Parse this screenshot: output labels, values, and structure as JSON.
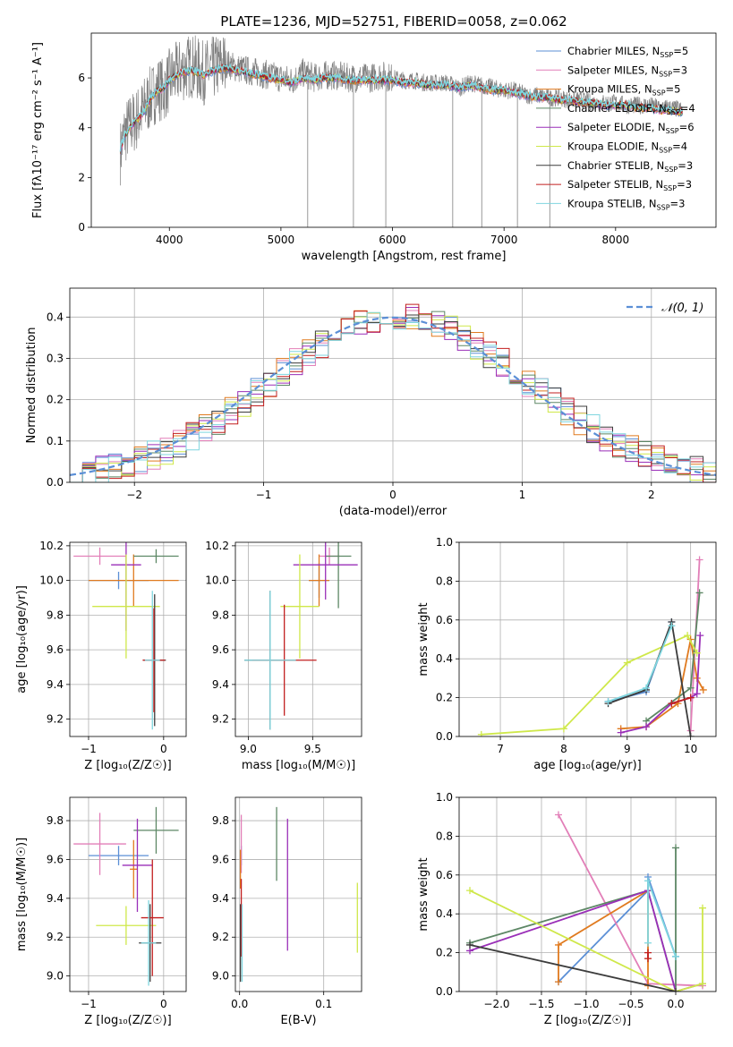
{
  "title": "PLATE=1236, MJD=52751, FIBERID=0058, z=0.062",
  "models": [
    {
      "name": "Chabrier MILES",
      "nssp": "5",
      "color": "#5b8fd6"
    },
    {
      "name": "Salpeter MILES",
      "nssp": "3",
      "color": "#e27fb8"
    },
    {
      "name": "Kroupa MILES",
      "nssp": "5",
      "color": "#e07a1f"
    },
    {
      "name": "Chabrier ELODIE",
      "nssp": "4",
      "color": "#5d8765"
    },
    {
      "name": "Salpeter ELODIE",
      "nssp": "6",
      "color": "#9a2fb8"
    },
    {
      "name": "Kroupa ELODIE",
      "nssp": "4",
      "color": "#cfe84a"
    },
    {
      "name": "Chabrier STELIB",
      "nssp": "3",
      "color": "#3c3c3c"
    },
    {
      "name": "Salpeter STELIB",
      "nssp": "3",
      "color": "#c21f1f"
    },
    {
      "name": "Kroupa STELIB",
      "nssp": "3",
      "color": "#7fd6df"
    }
  ],
  "chart_data": [
    {
      "id": "spectrum",
      "type": "line",
      "xlabel": "wavelength [Angstrom, rest frame]",
      "ylabel": "Flux [fλ10⁻¹⁷ erg cm⁻² s⁻¹ A⁻¹]",
      "xlim": [
        3300,
        8900
      ],
      "ylim": [
        0,
        7.8
      ],
      "xticks": [
        4000,
        5000,
        6000,
        7000,
        8000
      ],
      "yticks": [
        0,
        2,
        4,
        6
      ],
      "data_color": "#808080",
      "model_color": "#7fd6df",
      "data_points": [
        [
          3560,
          3.0
        ],
        [
          3600,
          3.8
        ],
        [
          3650,
          4.1
        ],
        [
          3700,
          4.3
        ],
        [
          3750,
          4.6
        ],
        [
          3800,
          5.0
        ],
        [
          3850,
          5.3
        ],
        [
          3900,
          5.6
        ],
        [
          3950,
          5.5
        ],
        [
          4000,
          5.9
        ],
        [
          4100,
          6.3
        ],
        [
          4200,
          6.5
        ],
        [
          4300,
          6.2
        ],
        [
          4400,
          6.4
        ],
        [
          4500,
          6.6
        ],
        [
          4600,
          6.4
        ],
        [
          4700,
          6.3
        ],
        [
          4800,
          6.2
        ],
        [
          4900,
          6.1
        ],
        [
          5000,
          6.0
        ],
        [
          5100,
          5.9
        ],
        [
          5200,
          6.2
        ],
        [
          5300,
          6.0
        ],
        [
          5400,
          6.1
        ],
        [
          5500,
          6.1
        ],
        [
          5600,
          6.0
        ],
        [
          5700,
          6.0
        ],
        [
          5800,
          6.0
        ],
        [
          5900,
          6.1
        ],
        [
          6000,
          6.0
        ],
        [
          6100,
          5.9
        ],
        [
          6200,
          5.9
        ],
        [
          6300,
          5.8
        ],
        [
          6400,
          5.8
        ],
        [
          6500,
          5.8
        ],
        [
          6600,
          5.6
        ],
        [
          6700,
          5.8
        ],
        [
          6800,
          5.7
        ],
        [
          6900,
          5.6
        ],
        [
          7000,
          5.5
        ],
        [
          7100,
          5.5
        ],
        [
          7200,
          5.3
        ],
        [
          7300,
          5.3
        ],
        [
          7400,
          5.2
        ],
        [
          7500,
          5.2
        ],
        [
          7600,
          5.1
        ],
        [
          7700,
          5.1
        ],
        [
          7800,
          5.0
        ],
        [
          7900,
          5.0
        ],
        [
          8000,
          5.0
        ],
        [
          8100,
          4.9
        ],
        [
          8200,
          4.9
        ],
        [
          8300,
          4.9
        ],
        [
          8400,
          4.8
        ],
        [
          8500,
          4.8
        ],
        [
          8600,
          4.7
        ]
      ],
      "data_noise": 0.6,
      "data_spikes": [
        5240,
        5650,
        5940,
        6540,
        6800,
        7120,
        7410
      ],
      "model_points": [
        [
          3560,
          3.1
        ],
        [
          3600,
          3.7
        ],
        [
          3650,
          4.0
        ],
        [
          3700,
          4.3
        ],
        [
          3750,
          4.5
        ],
        [
          3800,
          4.9
        ],
        [
          3850,
          5.3
        ],
        [
          3900,
          5.5
        ],
        [
          3950,
          5.6
        ],
        [
          4000,
          5.9
        ],
        [
          4100,
          6.2
        ],
        [
          4200,
          6.3
        ],
        [
          4300,
          6.1
        ],
        [
          4400,
          6.3
        ],
        [
          4500,
          6.4
        ],
        [
          4600,
          6.3
        ],
        [
          4700,
          6.2
        ],
        [
          4800,
          6.1
        ],
        [
          4900,
          6.0
        ],
        [
          5000,
          5.9
        ],
        [
          5100,
          5.8
        ],
        [
          5200,
          6.0
        ],
        [
          5300,
          5.9
        ],
        [
          5400,
          6.0
        ],
        [
          5500,
          6.0
        ],
        [
          5600,
          5.9
        ],
        [
          5700,
          5.9
        ],
        [
          5800,
          5.9
        ],
        [
          5900,
          5.9
        ],
        [
          6000,
          5.9
        ],
        [
          6100,
          5.8
        ],
        [
          6200,
          5.8
        ],
        [
          6300,
          5.7
        ],
        [
          6400,
          5.7
        ],
        [
          6500,
          5.7
        ],
        [
          6600,
          5.6
        ],
        [
          6700,
          5.7
        ],
        [
          6800,
          5.6
        ],
        [
          6900,
          5.5
        ],
        [
          7000,
          5.5
        ],
        [
          7100,
          5.4
        ],
        [
          7200,
          5.3
        ],
        [
          7300,
          5.2
        ],
        [
          7400,
          5.2
        ],
        [
          7500,
          5.1
        ],
        [
          7600,
          5.1
        ],
        [
          7700,
          5.0
        ],
        [
          7800,
          5.0
        ],
        [
          7900,
          4.9
        ],
        [
          8000,
          4.9
        ],
        [
          8100,
          4.9
        ],
        [
          8200,
          4.8
        ],
        [
          8300,
          4.8
        ],
        [
          8400,
          4.7
        ],
        [
          8500,
          4.7
        ],
        [
          8600,
          4.6
        ]
      ]
    },
    {
      "id": "residuals",
      "type": "histogram",
      "xlabel": "(data-model)/error",
      "ylabel": "Normed distribution",
      "xlim": [
        -2.5,
        2.5
      ],
      "ylim": [
        0,
        0.47
      ],
      "xticks": [
        -2,
        -1,
        0,
        1,
        2
      ],
      "yticks": [
        0.0,
        0.1,
        0.2,
        0.3,
        0.4
      ],
      "grid": true,
      "legend": "top-right",
      "gaussian_label": "𝒩(0, 1)",
      "gaussian_color": "#5b8fd6",
      "bin_width": 0.1,
      "bin_start": -2.5
    },
    {
      "id": "age-vs-Z",
      "type": "errorbar",
      "xlabel": "Z [log₁₀(Z/Z☉)]",
      "ylabel": "age  [log₁₀(age/yr)]",
      "xlim": [
        -1.25,
        0.3
      ],
      "ylim": [
        9.1,
        10.22
      ],
      "xticks": [
        -1,
        0
      ],
      "yticks": [
        9.2,
        9.4,
        9.6,
        9.8,
        10.0,
        10.2
      ],
      "grid": true,
      "points": [
        {
          "model": 0,
          "x": -0.6,
          "y": 10.0,
          "xerr": 0.4,
          "yerr": 0.05
        },
        {
          "model": 1,
          "x": -0.85,
          "y": 10.14,
          "xerr": 0.35,
          "yerr": 0.05
        },
        {
          "model": 2,
          "x": -0.4,
          "y": 10.0,
          "xerr": 0.6,
          "yerr": 0.15
        },
        {
          "model": 3,
          "x": -0.1,
          "y": 10.14,
          "xerr": 0.3,
          "yerr": 0.04
        },
        {
          "model": 4,
          "x": -0.5,
          "y": 10.09,
          "xerr": 0.2,
          "yerr": 0.38
        },
        {
          "model": 5,
          "x": -0.5,
          "y": 9.85,
          "xerr": 0.45,
          "yerr": 0.3
        },
        {
          "model": 6,
          "x": -0.12,
          "y": 9.54,
          "xerr": 0.15,
          "yerr": 0.38
        },
        {
          "model": 7,
          "x": -0.13,
          "y": 9.54,
          "xerr": 0.15,
          "yerr": 0.3
        },
        {
          "model": 8,
          "x": -0.15,
          "y": 9.54,
          "xerr": 0.1,
          "yerr": 0.4
        }
      ]
    },
    {
      "id": "age-vs-mass",
      "type": "errorbar",
      "xlabel": "mass [log₁₀(M/M☉)]",
      "xlim": [
        8.9,
        9.88
      ],
      "ylim": [
        9.1,
        10.22
      ],
      "xticks": [
        9.0,
        9.5
      ],
      "yticks": [
        9.2,
        9.4,
        9.6,
        9.8,
        10.0,
        10.2
      ],
      "grid": true,
      "points": [
        {
          "model": 0,
          "x": 9.55,
          "y": 10.0,
          "xerr": 0.08,
          "yerr": 0.1
        },
        {
          "model": 1,
          "x": 9.63,
          "y": 10.14,
          "xerr": 0.08,
          "yerr": 0.05
        },
        {
          "model": 2,
          "x": 9.55,
          "y": 10.0,
          "xerr": 0.08,
          "yerr": 0.15
        },
        {
          "model": 3,
          "x": 9.7,
          "y": 10.14,
          "xerr": 0.1,
          "yerr": 0.3
        },
        {
          "model": 4,
          "x": 9.6,
          "y": 10.09,
          "xerr": 0.25,
          "yerr": 0.2
        },
        {
          "model": 5,
          "x": 9.4,
          "y": 9.85,
          "xerr": 0.15,
          "yerr": 0.3
        },
        {
          "model": 6,
          "x": 9.17,
          "y": 9.54,
          "xerr": 0.2,
          "yerr": 0.4
        },
        {
          "model": 7,
          "x": 9.28,
          "y": 9.54,
          "xerr": 0.25,
          "yerr": 0.32
        },
        {
          "model": 8,
          "x": 9.17,
          "y": 9.54,
          "xerr": 0.2,
          "yerr": 0.4
        }
      ]
    },
    {
      "id": "weight-vs-age",
      "type": "line",
      "xlabel": "age  [log₁₀(age/yr)]",
      "ylabel": "mass weight",
      "xlim": [
        6.35,
        10.4
      ],
      "ylim": [
        0,
        1.0
      ],
      "xticks": [
        7,
        8,
        9,
        10
      ],
      "yticks": [
        0.0,
        0.2,
        0.4,
        0.6,
        0.8,
        1.0
      ],
      "grid": true,
      "series": [
        {
          "model": 0,
          "x": [
            8.7,
            9.3,
            9.7
          ],
          "y": [
            0.18,
            0.23,
            0.59
          ]
        },
        {
          "model": 1,
          "x": [
            10.0,
            10.14
          ],
          "y": [
            0.03,
            0.91
          ]
        },
        {
          "model": 2,
          "x": [
            8.9,
            9.3,
            9.8,
            10.0,
            10.1,
            10.2
          ],
          "y": [
            0.04,
            0.05,
            0.17,
            0.5,
            0.3,
            0.24
          ]
        },
        {
          "model": 3,
          "x": [
            9.3,
            10.0,
            10.14
          ],
          "y": [
            0.08,
            0.25,
            0.74
          ]
        },
        {
          "model": 4,
          "x": [
            8.9,
            9.3,
            9.7,
            10.0,
            10.1,
            10.15
          ],
          "y": [
            0.02,
            0.05,
            0.17,
            0.2,
            0.22,
            0.52
          ]
        },
        {
          "model": 5,
          "x": [
            6.7,
            8.0,
            9.0,
            9.95,
            10.1
          ],
          "y": [
            0.01,
            0.04,
            0.38,
            0.52,
            0.43
          ]
        },
        {
          "model": 6,
          "x": [
            8.7,
            9.3,
            9.7,
            10.0
          ],
          "y": [
            0.17,
            0.24,
            0.59,
            0.0
          ]
        },
        {
          "model": 7,
          "x": [
            9.7,
            10.0
          ],
          "y": [
            0.17,
            0.2
          ]
        },
        {
          "model": 8,
          "x": [
            8.7,
            9.3,
            9.7
          ],
          "y": [
            0.18,
            0.25,
            0.57
          ]
        }
      ]
    },
    {
      "id": "mass-vs-Z",
      "type": "errorbar",
      "xlabel": "Z [log₁₀(Z/Z☉)]",
      "ylabel": "mass [log₁₀(M/M☉)]",
      "xlim": [
        -1.25,
        0.3
      ],
      "ylim": [
        8.92,
        9.92
      ],
      "xticks": [
        -1,
        0
      ],
      "yticks": [
        9.0,
        9.2,
        9.4,
        9.6,
        9.8
      ],
      "grid": true,
      "points": [
        {
          "model": 0,
          "x": -0.6,
          "y": 9.62,
          "xerr": 0.4,
          "yerr": 0.05
        },
        {
          "model": 1,
          "x": -0.85,
          "y": 9.68,
          "xerr": 0.35,
          "yerr": 0.16
        },
        {
          "model": 2,
          "x": -0.4,
          "y": 9.55,
          "xerr": 0.05,
          "yerr": 0.15
        },
        {
          "model": 3,
          "x": -0.1,
          "y": 9.75,
          "xerr": 0.3,
          "yerr": 0.12
        },
        {
          "model": 4,
          "x": -0.35,
          "y": 9.57,
          "xerr": 0.2,
          "yerr": 0.24
        },
        {
          "model": 5,
          "x": -0.5,
          "y": 9.26,
          "xerr": 0.4,
          "yerr": 0.1
        },
        {
          "model": 6,
          "x": -0.18,
          "y": 9.17,
          "xerr": 0.15,
          "yerr": 0.2
        },
        {
          "model": 7,
          "x": -0.15,
          "y": 9.3,
          "xerr": 0.15,
          "yerr": 0.3
        },
        {
          "model": 8,
          "x": -0.2,
          "y": 9.17,
          "xerr": 0.1,
          "yerr": 0.22
        }
      ]
    },
    {
      "id": "mass-vs-EBV",
      "type": "errorbar",
      "xlabel": "E(B-V)",
      "xlim": [
        -0.005,
        0.145
      ],
      "ylim": [
        8.92,
        9.92
      ],
      "xticks": [
        0.0,
        0.1
      ],
      "yticks": [
        9.0,
        9.2,
        9.4,
        9.6,
        9.8
      ],
      "grid": true,
      "points": [
        {
          "model": 0,
          "x": 0.002,
          "y": 9.62,
          "xerr": 0,
          "yerr": 0.05
        },
        {
          "model": 1,
          "x": 0.002,
          "y": 9.68,
          "xerr": 0,
          "yerr": 0.15
        },
        {
          "model": 2,
          "x": 0.001,
          "y": 9.55,
          "xerr": 0,
          "yerr": 0.1
        },
        {
          "model": 3,
          "x": 0.044,
          "y": 9.68,
          "xerr": 0,
          "yerr": 0.19
        },
        {
          "model": 4,
          "x": 0.057,
          "y": 9.47,
          "xerr": 0,
          "yerr": 0.34
        },
        {
          "model": 5,
          "x": 0.14,
          "y": 9.3,
          "xerr": 0,
          "yerr": 0.18
        },
        {
          "model": 6,
          "x": 0.001,
          "y": 9.17,
          "xerr": 0,
          "yerr": 0.2
        },
        {
          "model": 7,
          "x": 0.002,
          "y": 9.3,
          "xerr": 0,
          "yerr": 0.2
        },
        {
          "model": 8,
          "x": 0.003,
          "y": 9.17,
          "xerr": 0,
          "yerr": 0.2
        }
      ]
    },
    {
      "id": "weight-vs-Z",
      "type": "line",
      "xlabel": "Z [log₁₀(Z/Z☉)]",
      "ylabel": "mass weight",
      "xlim": [
        -2.42,
        0.45
      ],
      "ylim": [
        0,
        1.0
      ],
      "xticks": [
        -2.0,
        -1.5,
        -1.0,
        -0.5,
        0.0
      ],
      "yticks": [
        0.0,
        0.2,
        0.4,
        0.6,
        0.8,
        1.0
      ],
      "grid": true,
      "series": [
        {
          "model": 0,
          "x": [
            -1.31,
            -0.31,
            -0.31,
            0.0
          ],
          "y": [
            0.05,
            0.52,
            0.59,
            0.18
          ]
        },
        {
          "model": 1,
          "x": [
            -1.31,
            -0.31,
            0.3
          ],
          "y": [
            0.91,
            0.04,
            0.03
          ]
        },
        {
          "model": 2,
          "x": [
            -1.31,
            -1.31,
            -0.31,
            -0.31,
            -0.31
          ],
          "y": [
            0.05,
            0.24,
            0.52,
            0.17,
            0.03
          ]
        },
        {
          "model": 3,
          "x": [
            -2.3,
            -0.31,
            0.0,
            0.0
          ],
          "y": [
            0.25,
            0.52,
            0.0,
            0.74
          ]
        },
        {
          "model": 4,
          "x": [
            -2.3,
            -0.31,
            0.0,
            0.3
          ],
          "y": [
            0.21,
            0.52,
            0.0,
            0.04
          ]
        },
        {
          "model": 5,
          "x": [
            -2.3,
            0.0,
            0.3,
            0.3
          ],
          "y": [
            0.52,
            0.0,
            0.04,
            0.43
          ]
        },
        {
          "model": 6,
          "x": [
            -2.3,
            0.0
          ],
          "y": [
            0.24,
            0.0
          ]
        },
        {
          "model": 7,
          "x": [
            -0.31,
            -0.31
          ],
          "y": [
            0.17,
            0.2
          ]
        },
        {
          "model": 8,
          "x": [
            -0.31,
            -0.31,
            0.0
          ],
          "y": [
            0.25,
            0.57,
            0.18
          ]
        }
      ]
    }
  ]
}
